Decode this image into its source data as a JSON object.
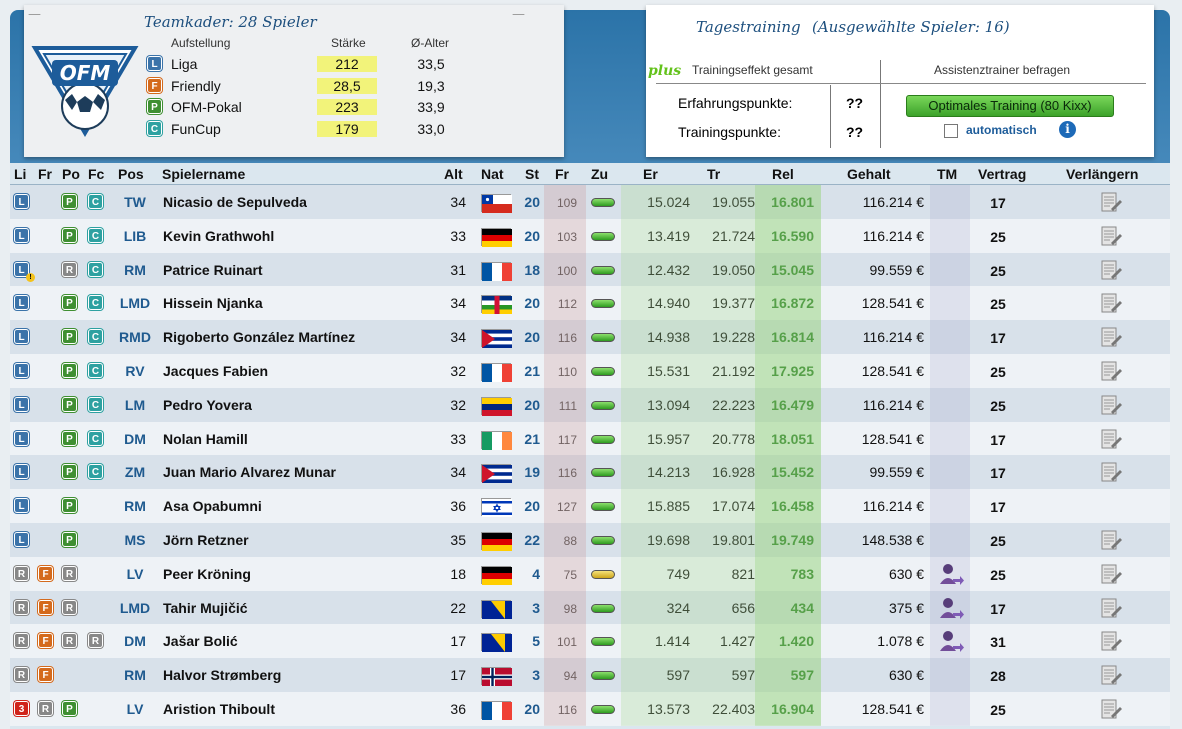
{
  "team": {
    "title": "Teamkader: 28 Spieler",
    "columns": [
      "Aufstellung",
      "Stärke",
      "Ø-Alter"
    ],
    "lineups": [
      {
        "badge": "L",
        "name": "Liga",
        "strength": "212",
        "age": "33,5"
      },
      {
        "badge": "F",
        "name": "Friendly",
        "strength": "28,5",
        "age": "19,3"
      },
      {
        "badge": "P",
        "name": "OFM-Pokal",
        "strength": "223",
        "age": "33,9"
      },
      {
        "badge": "C",
        "name": "FunCup",
        "strength": "179",
        "age": "33,0"
      }
    ]
  },
  "training": {
    "title": "Tagestraining",
    "subtitle": "(Ausgewählte Spieler: 16)",
    "plus_label": "plus",
    "effect_label": "Trainingseffekt gesamt",
    "assistant_label": "Assistenztrainer befragen",
    "xp_label": "Erfahrungspunkte:",
    "xp_value": "??",
    "tp_label": "Trainingspunkte:",
    "tp_value": "??",
    "button_label": "Optimales Training (80 Kixx)",
    "auto_label": "automatisch",
    "info_glyph": "i"
  },
  "grid": {
    "headers": [
      "Li",
      "Fr",
      "Po",
      "Fc",
      "Pos",
      "Spielername",
      "Alt",
      "Nat",
      "St",
      "Fr",
      "Zu",
      "Er",
      "Tr",
      "Rel",
      "Gehalt",
      "TM",
      "Vertrag",
      "Verlängern"
    ],
    "rows": [
      {
        "badges": [
          "L",
          "",
          "P",
          "C"
        ],
        "warn": false,
        "pos": "TW",
        "name": "Nicasio de Sepulveda",
        "age": "34",
        "nat": "chile",
        "st": "20",
        "fr": "109",
        "zu": "g",
        "er": "15.024",
        "tr": "19.055",
        "rel": "16.801",
        "salary": "116.214 €",
        "tm": false,
        "contract": "17",
        "extend": true
      },
      {
        "badges": [
          "L",
          "",
          "P",
          "C"
        ],
        "warn": false,
        "pos": "LIB",
        "name": "Kevin Grathwohl",
        "age": "33",
        "nat": "germany",
        "st": "20",
        "fr": "103",
        "zu": "g",
        "er": "13.419",
        "tr": "21.724",
        "rel": "16.590",
        "salary": "116.214 €",
        "tm": false,
        "contract": "25",
        "extend": true
      },
      {
        "badges": [
          "L",
          "",
          "R",
          "C"
        ],
        "warn": true,
        "pos": "RM",
        "name": "Patrice Ruinart",
        "age": "31",
        "nat": "france",
        "st": "18",
        "fr": "100",
        "zu": "g",
        "er": "12.432",
        "tr": "19.050",
        "rel": "15.045",
        "salary": "99.559 €",
        "tm": false,
        "contract": "25",
        "extend": true
      },
      {
        "badges": [
          "L",
          "",
          "P",
          "C"
        ],
        "warn": false,
        "pos": "LMD",
        "name": "Hissein Njanka",
        "age": "34",
        "nat": "car",
        "st": "20",
        "fr": "112",
        "zu": "g",
        "er": "14.940",
        "tr": "19.377",
        "rel": "16.872",
        "salary": "128.541 €",
        "tm": false,
        "contract": "25",
        "extend": true
      },
      {
        "badges": [
          "L",
          "",
          "P",
          "C"
        ],
        "warn": false,
        "pos": "RMD",
        "name": "Rigoberto González Martínez",
        "age": "34",
        "nat": "cuba",
        "st": "20",
        "fr": "116",
        "zu": "g",
        "er": "14.938",
        "tr": "19.228",
        "rel": "16.814",
        "salary": "116.214 €",
        "tm": false,
        "contract": "17",
        "extend": true
      },
      {
        "badges": [
          "L",
          "",
          "P",
          "C"
        ],
        "warn": false,
        "pos": "RV",
        "name": "Jacques Fabien",
        "age": "32",
        "nat": "france",
        "st": "21",
        "fr": "110",
        "zu": "g",
        "er": "15.531",
        "tr": "21.192",
        "rel": "17.925",
        "salary": "128.541 €",
        "tm": false,
        "contract": "25",
        "extend": true
      },
      {
        "badges": [
          "L",
          "",
          "P",
          "C"
        ],
        "warn": false,
        "pos": "LM",
        "name": "Pedro Yovera",
        "age": "32",
        "nat": "venezuela",
        "st": "20",
        "fr": "111",
        "zu": "g",
        "er": "13.094",
        "tr": "22.223",
        "rel": "16.479",
        "salary": "116.214 €",
        "tm": false,
        "contract": "25",
        "extend": true
      },
      {
        "badges": [
          "L",
          "",
          "P",
          "C"
        ],
        "warn": false,
        "pos": "DM",
        "name": "Nolan Hamill",
        "age": "33",
        "nat": "ireland",
        "st": "21",
        "fr": "117",
        "zu": "g",
        "er": "15.957",
        "tr": "20.778",
        "rel": "18.051",
        "salary": "128.541 €",
        "tm": false,
        "contract": "17",
        "extend": true
      },
      {
        "badges": [
          "L",
          "",
          "P",
          "C"
        ],
        "warn": false,
        "pos": "ZM",
        "name": "Juan Mario Alvarez Munar",
        "age": "34",
        "nat": "cuba",
        "st": "19",
        "fr": "116",
        "zu": "g",
        "er": "14.213",
        "tr": "16.928",
        "rel": "15.452",
        "salary": "99.559 €",
        "tm": false,
        "contract": "17",
        "extend": true
      },
      {
        "badges": [
          "L",
          "",
          "P",
          ""
        ],
        "warn": false,
        "pos": "RM",
        "name": "Asa Opabumni",
        "age": "36",
        "nat": "israel",
        "st": "20",
        "fr": "127",
        "zu": "g",
        "er": "15.885",
        "tr": "17.074",
        "rel": "16.458",
        "salary": "116.214 €",
        "tm": false,
        "contract": "17",
        "extend": false
      },
      {
        "badges": [
          "L",
          "",
          "P",
          ""
        ],
        "warn": false,
        "pos": "MS",
        "name": "Jörn Retzner",
        "age": "35",
        "nat": "germany",
        "st": "22",
        "fr": "88",
        "zu": "g",
        "er": "19.698",
        "tr": "19.801",
        "rel": "19.749",
        "salary": "148.538 €",
        "tm": false,
        "contract": "25",
        "extend": true
      },
      {
        "badges": [
          "R",
          "F",
          "R",
          ""
        ],
        "warn": false,
        "pos": "LV",
        "name": "Peer Kröning",
        "age": "18",
        "nat": "germany",
        "st": "4",
        "fr": "75",
        "zu": "y",
        "er": "749",
        "tr": "821",
        "rel": "783",
        "salary": "630 €",
        "tm": true,
        "contract": "25",
        "extend": true
      },
      {
        "badges": [
          "R",
          "F",
          "R",
          ""
        ],
        "warn": false,
        "pos": "LMD",
        "name": "Tahir Mujičić",
        "age": "22",
        "nat": "bosnia",
        "st": "3",
        "fr": "98",
        "zu": "g",
        "er": "324",
        "tr": "656",
        "rel": "434",
        "salary": "375 €",
        "tm": true,
        "contract": "17",
        "extend": true
      },
      {
        "badges": [
          "R",
          "F",
          "R",
          "R"
        ],
        "warn": false,
        "pos": "DM",
        "name": "Jašar Bolić",
        "age": "17",
        "nat": "bosnia",
        "st": "5",
        "fr": "101",
        "zu": "g",
        "er": "1.414",
        "tr": "1.427",
        "rel": "1.420",
        "salary": "1.078 €",
        "tm": true,
        "contract": "31",
        "extend": true
      },
      {
        "badges": [
          "R",
          "F",
          "",
          ""
        ],
        "warn": false,
        "pos": "RM",
        "name": "Halvor Strømberg",
        "age": "17",
        "nat": "norway",
        "st": "3",
        "fr": "94",
        "zu": "g",
        "er": "597",
        "tr": "597",
        "rel": "597",
        "salary": "630 €",
        "tm": false,
        "contract": "28",
        "extend": true
      },
      {
        "badges": [
          "3",
          "R",
          "P",
          ""
        ],
        "warn": false,
        "pos": "LV",
        "name": "Aristion Thiboult",
        "age": "36",
        "nat": "france",
        "st": "20",
        "fr": "116",
        "zu": "g",
        "er": "13.573",
        "tr": "22.403",
        "rel": "16.904",
        "salary": "128.541 €",
        "tm": false,
        "contract": "25",
        "extend": true
      }
    ]
  }
}
